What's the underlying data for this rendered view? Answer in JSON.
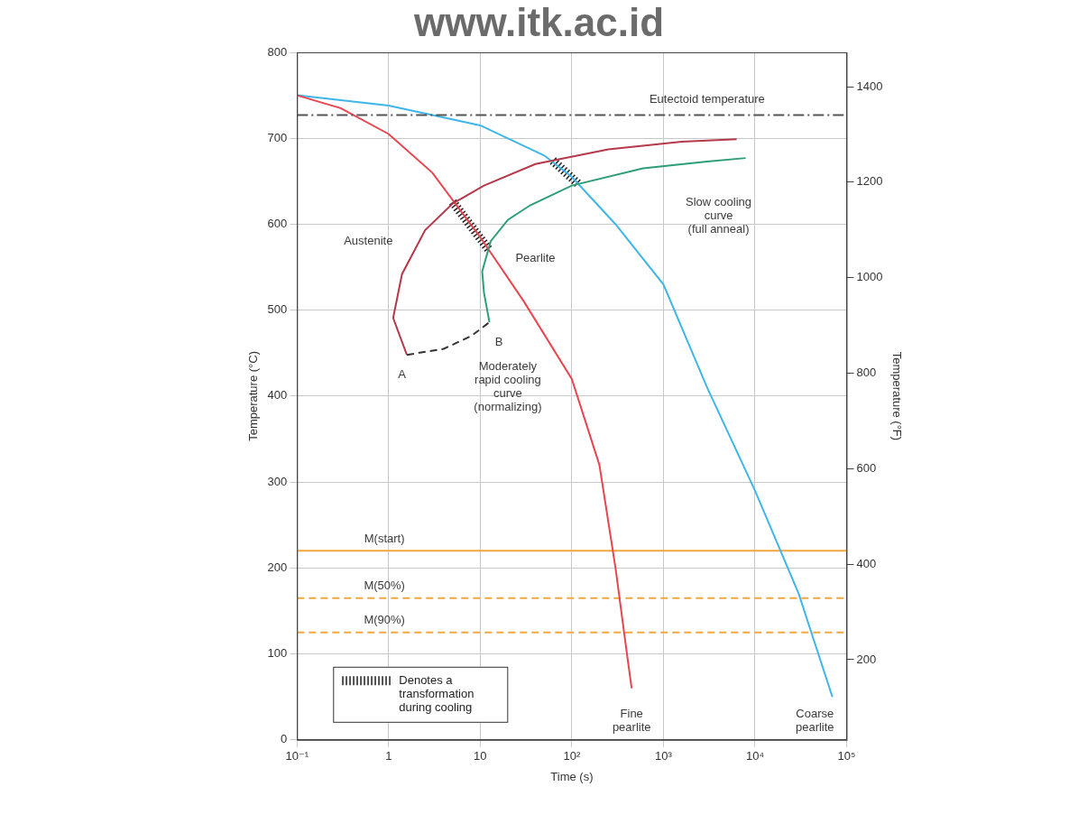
{
  "chart_data": {
    "type": "line",
    "watermark": "www.itk.ac.id",
    "xlabel": "Time (s)",
    "ylabel": "Temperature (°C)",
    "y2label": "Temperature (°F)",
    "log": "x",
    "grid": true,
    "legend": "lower left",
    "xlim": [
      0.1,
      100000
    ],
    "xticks": [
      {
        "value": 0.1,
        "label": "10⁻¹"
      },
      1,
      10,
      {
        "value": 100,
        "label": "10²"
      },
      {
        "value": 1000,
        "label": "10³"
      },
      {
        "value": 10000,
        "label": "10⁴"
      },
      {
        "value": 100000,
        "label": "10⁵"
      }
    ],
    "ylim": [
      0,
      800
    ],
    "yticks": [
      0,
      100,
      200,
      300,
      400,
      500,
      600,
      700,
      800
    ],
    "y2lim": [
      32,
      1472
    ],
    "y2ticks": [
      200,
      400,
      600,
      800,
      1000,
      1200,
      1400
    ],
    "series": [
      {
        "color": "#555555",
        "line_style": "dashdot",
        "x": [
          0.1,
          100000
        ],
        "values": [
          727,
          727
        ]
      },
      {
        "color": "#b5394a",
        "line_style": "solid",
        "x": [
          1.58,
          1.12,
          1.4,
          2.5,
          5,
          11,
          40,
          250,
          1585,
          6300
        ],
        "values": [
          448,
          491,
          542,
          593,
          624,
          645,
          670,
          687,
          696,
          699
        ]
      },
      {
        "color": "#333333",
        "line_style": "dashed",
        "x": [
          1.58,
          4,
          8,
          12.6
        ],
        "values": [
          448,
          455,
          470,
          486
        ]
      },
      {
        "color": "#2e9e7a",
        "line_style": "solid",
        "x": [
          12.6,
          11,
          10.5,
          13,
          20,
          35,
          100,
          600,
          3000,
          7900
        ],
        "values": [
          486,
          520,
          545,
          580,
          605,
          622,
          645,
          665,
          673,
          677
        ]
      },
      {
        "color": "#e8454f",
        "line_style": "solid",
        "x": [
          0.1,
          0.3,
          1,
          3,
          10,
          30,
          100,
          200,
          300,
          400,
          450
        ],
        "values": [
          750,
          735,
          705,
          660,
          585,
          510,
          420,
          320,
          200,
          100,
          60
        ]
      },
      {
        "color": "#3fb6e8",
        "line_style": "solid",
        "x": [
          0.1,
          1,
          10,
          50,
          100,
          300,
          1000,
          3000,
          10000,
          30000,
          70000
        ],
        "values": [
          750,
          738,
          715,
          680,
          655,
          600,
          530,
          410,
          290,
          170,
          50
        ]
      },
      {
        "name": "Denotes a transformation during cooling",
        "color": "#222222",
        "line_style": "hatch",
        "x": [
          5,
          12.5,
          null,
          62,
          120
        ],
        "values": [
          626,
          570,
          null,
          674,
          646
        ]
      },
      {
        "color": "#f4a640",
        "line_style": "solid",
        "x": [
          0.1,
          100000
        ],
        "values": [
          220,
          220
        ]
      },
      {
        "color": "#f4a640",
        "line_style": "dashed",
        "x": [
          0.1,
          100000
        ],
        "values": [
          165,
          165
        ]
      },
      {
        "color": "#f4a640",
        "line_style": "dashed",
        "x": [
          0.1,
          100000
        ],
        "values": [
          125,
          125
        ]
      }
    ],
    "annotations": [
      {
        "text": "Eutectoid temperature",
        "x": 3000,
        "y": 745
      },
      {
        "text": "Austenite",
        "x": 0.6,
        "y": 580
      },
      {
        "text": "Pearlite",
        "x": 40,
        "y": 560
      },
      {
        "text": "A",
        "x": 1.4,
        "y": 425
      },
      {
        "text": "B",
        "x": 16,
        "y": 462
      },
      {
        "text": "Slow cooling\ncurve\n(full anneal)",
        "x": 4000,
        "y": 610
      },
      {
        "text": "Moderately\nrapid cooling\ncurve\n(normalizing)",
        "x": 20,
        "y": 410
      },
      {
        "text": "M(start)",
        "x": 0.9,
        "y": 234
      },
      {
        "text": "M(50%)",
        "x": 0.9,
        "y": 179
      },
      {
        "text": "M(90%)",
        "x": 0.9,
        "y": 139
      },
      {
        "text": "Fine\npearlite",
        "x": 450,
        "y": 22
      },
      {
        "text": "Coarse\npearlite",
        "x": 45000,
        "y": 22
      }
    ]
  }
}
